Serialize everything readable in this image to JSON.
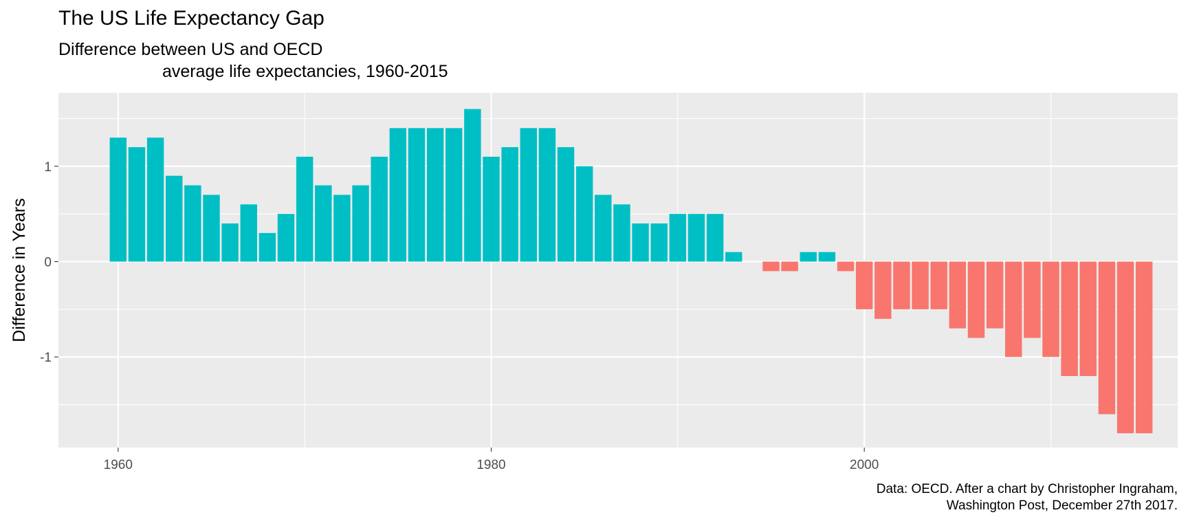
{
  "chart_data": {
    "type": "bar",
    "title": "The US Life Expectancy Gap",
    "subtitle_line1": "Difference between US and OECD",
    "subtitle_line2": "average life expectancies, 1960-2015",
    "ylabel": "Difference in Years",
    "xlabel": "",
    "caption_line1": "Data: OECD. After a chart by Christopher Ingraham,",
    "caption_line2": "Washington Post, December 27th 2017.",
    "x": [
      1960,
      1961,
      1962,
      1963,
      1964,
      1965,
      1966,
      1967,
      1968,
      1969,
      1970,
      1971,
      1972,
      1973,
      1974,
      1975,
      1976,
      1977,
      1978,
      1979,
      1980,
      1981,
      1982,
      1983,
      1984,
      1985,
      1986,
      1987,
      1988,
      1989,
      1990,
      1991,
      1992,
      1993,
      1994,
      1995,
      1996,
      1997,
      1998,
      1999,
      2000,
      2001,
      2002,
      2003,
      2004,
      2005,
      2006,
      2007,
      2008,
      2009,
      2010,
      2011,
      2012,
      2013,
      2014,
      2015
    ],
    "values": [
      1.3,
      1.2,
      1.3,
      0.9,
      0.8,
      0.7,
      0.4,
      0.6,
      0.3,
      0.5,
      1.1,
      0.8,
      0.7,
      0.8,
      1.1,
      1.4,
      1.4,
      1.4,
      1.4,
      1.6,
      1.1,
      1.2,
      1.4,
      1.4,
      1.2,
      1.0,
      0.7,
      0.6,
      0.4,
      0.4,
      0.5,
      0.5,
      0.5,
      0.1,
      0,
      -0.1,
      -0.1,
      0.1,
      0.1,
      -0.1,
      -0.5,
      -0.6,
      -0.5,
      -0.5,
      -0.5,
      -0.7,
      -0.8,
      -0.7,
      -1.0,
      -0.8,
      -1.0,
      -1.2,
      -1.2,
      -1.6,
      -1.8,
      -1.8
    ],
    "xlim": [
      1956.8,
      2016.8
    ],
    "ylim": [
      -1.95,
      1.77
    ],
    "x_ticks": [
      1960,
      1980,
      2000
    ],
    "x_tick_labels": [
      "1960",
      "1980",
      "2000"
    ],
    "y_ticks": [
      -1,
      0,
      1
    ],
    "y_tick_labels": [
      "-1",
      "0",
      "1"
    ],
    "positive_color": "#00BFC4",
    "negative_color": "#F8766D",
    "panel_color": "#EBEBEB",
    "grid": true,
    "legend": "none"
  }
}
